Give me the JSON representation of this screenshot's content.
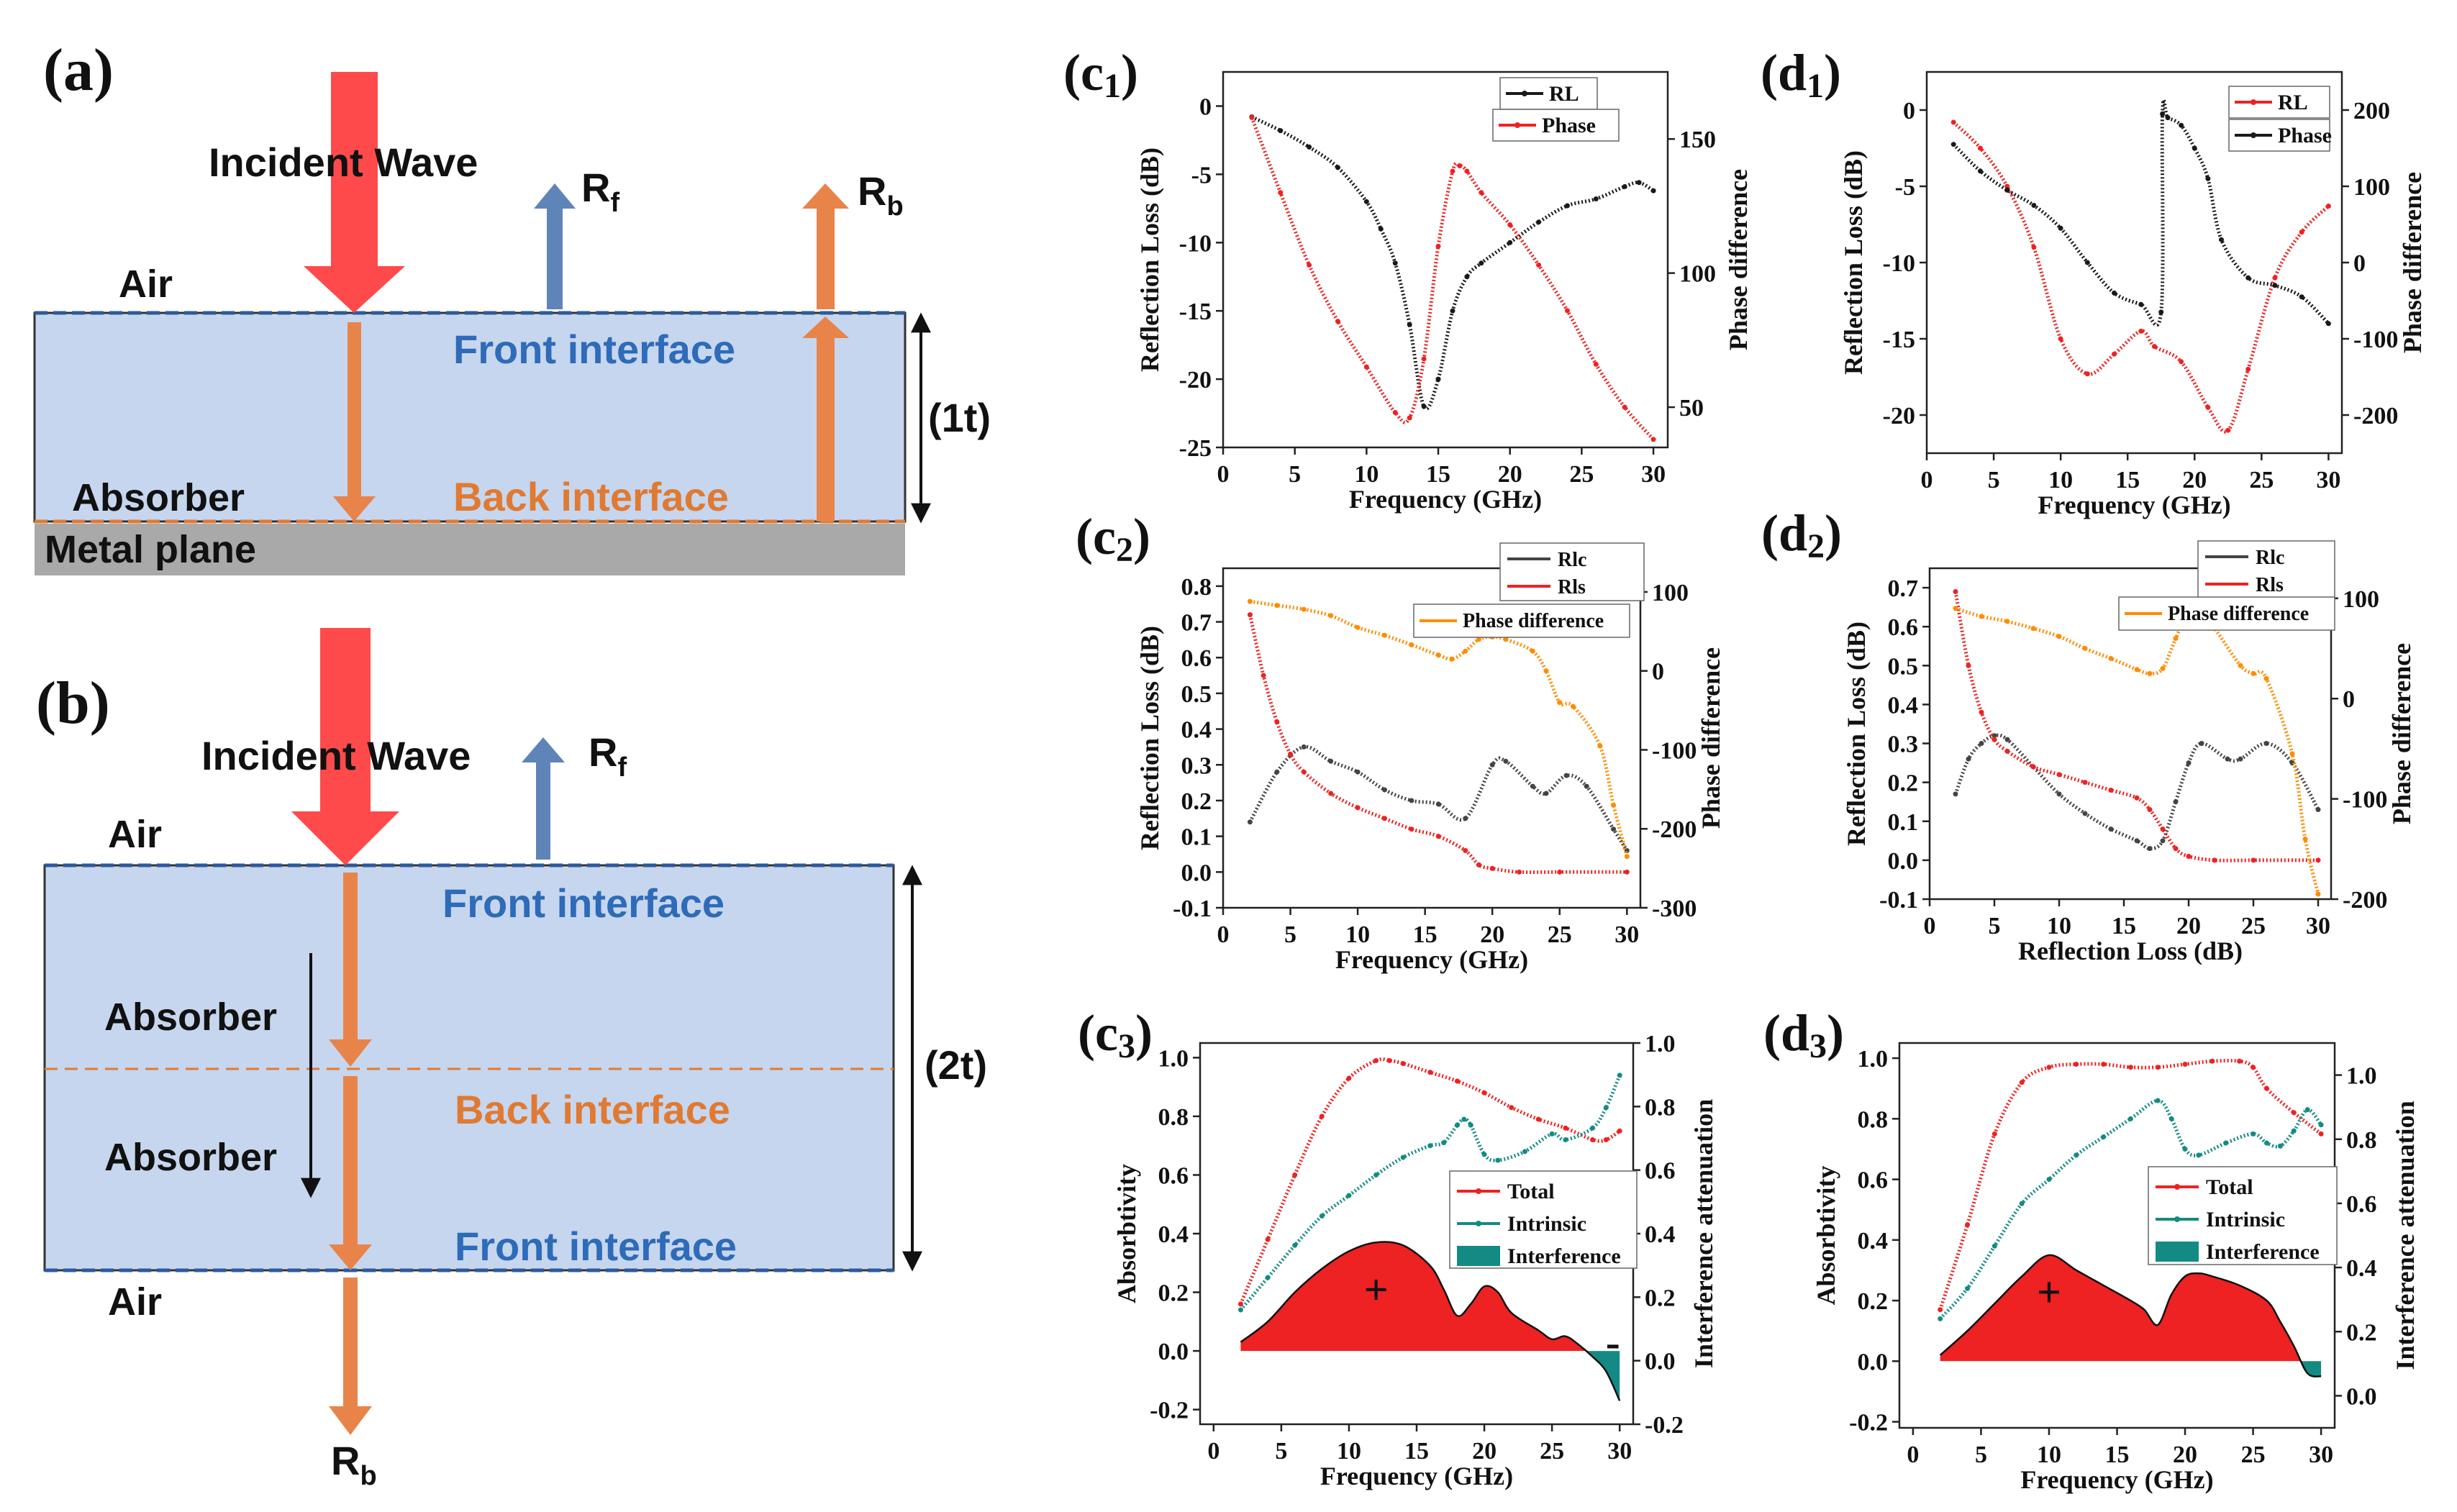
{
  "panel_a": {
    "label": "(a)",
    "incident": "Incident Wave",
    "rf": "R",
    "rf_sub": "f",
    "rb": "R",
    "rb_sub": "b",
    "air": "Air",
    "front": "Front interface",
    "absorber": "Absorber",
    "back": "Back interface",
    "metal": "Metal plane",
    "thick": "(1t)"
  },
  "panel_b": {
    "label": "(b)",
    "incident": "Incident Wave",
    "rf": "R",
    "rf_sub": "f",
    "air_top": "Air",
    "front1": "Front interface",
    "absorber1": "Absorber",
    "back": "Back interface",
    "absorber2": "Absorber",
    "front2": "Front interface",
    "air_bottom": "Air",
    "rb": "R",
    "rb_sub": "b",
    "thick": "(2t)"
  },
  "colors": {
    "red_arrow": "#fe4a4a",
    "orange_arrow": "#e8844a",
    "blue_arrow": "#5f84b8",
    "layer": "#c6d6ee",
    "metal": "#a9a9a9",
    "blue_text": "#2e6bb8",
    "orange_text": "#e07a32",
    "black": "#1a1a1a",
    "red": "#ee2222",
    "orange": "#ff8c00",
    "teal": "#138b84",
    "gray": "#444444"
  },
  "chart_data": [
    {
      "id": "c1",
      "label": "(c",
      "sub": "1",
      "type": "line",
      "xlabel": "Frequency (GHz)",
      "ylabel": "Reflection Loss (dB)",
      "y2label": "Phase difference",
      "xlim": [
        0,
        31
      ],
      "ylim": [
        -25,
        2.5
      ],
      "y2lim": [
        35,
        175
      ],
      "xticks": [
        0,
        5,
        10,
        15,
        20,
        25,
        30
      ],
      "yticks": [
        0,
        -5,
        -10,
        -15,
        -20,
        -25
      ],
      "y2ticks": [
        50,
        100,
        150
      ],
      "legend": [
        {
          "name": "RL",
          "color": "#1a1a1a"
        },
        {
          "name": "Phase",
          "color": "#ee2222"
        }
      ],
      "series": [
        {
          "name": "RL",
          "axis": "y",
          "color": "#1a1a1a",
          "x": [
            2,
            4,
            6,
            8,
            10,
            11,
            12,
            13,
            14,
            15,
            16,
            17,
            18,
            20,
            22,
            24,
            26,
            28,
            29,
            30
          ],
          "y": [
            -0.8,
            -1.8,
            -3,
            -4.5,
            -7,
            -9,
            -11.5,
            -16,
            -22,
            -20,
            -15,
            -12.5,
            -11.5,
            -10,
            -8.5,
            -7.3,
            -6.8,
            -5.9,
            -5.6,
            -6.2
          ]
        },
        {
          "name": "Phase",
          "axis": "y2",
          "color": "#ee2222",
          "x": [
            2,
            4,
            6,
            8,
            10,
            12,
            13,
            14,
            15,
            16,
            16.5,
            17,
            18,
            20,
            22,
            24,
            26,
            28,
            30
          ],
          "y": [
            158,
            130,
            103,
            82,
            65,
            48,
            46,
            68,
            110,
            138,
            140,
            138,
            130,
            118,
            103,
            86,
            66,
            50,
            38
          ]
        }
      ]
    },
    {
      "id": "d1",
      "label": "(d",
      "sub": "1",
      "type": "line",
      "xlabel": "Frequency (GHz)",
      "ylabel": "Reflection Loss (dB)",
      "y2label": "Phase difference",
      "xlim": [
        0,
        31
      ],
      "ylim": [
        -22.5,
        2.5
      ],
      "y2lim": [
        -250,
        250
      ],
      "xticks": [
        0,
        5,
        10,
        15,
        20,
        25,
        30
      ],
      "yticks": [
        0,
        -5,
        -10,
        -15,
        -20
      ],
      "y2ticks": [
        200,
        100,
        0,
        -100,
        -200
      ],
      "legend": [
        {
          "name": "RL",
          "color": "#ee2222"
        },
        {
          "name": "Phase",
          "color": "#1a1a1a"
        }
      ],
      "series": [
        {
          "name": "RL",
          "axis": "y",
          "color": "#ee2222",
          "x": [
            2,
            4,
            6,
            8,
            10,
            12,
            14,
            16,
            17,
            19,
            21,
            22.5,
            24,
            26,
            28,
            30
          ],
          "y": [
            -0.8,
            -2.5,
            -5,
            -9,
            -15,
            -17.3,
            -16,
            -14.5,
            -15.5,
            -16.5,
            -19.5,
            -21,
            -17,
            -11,
            -8,
            -6.3
          ]
        },
        {
          "name": "Phase",
          "axis": "y2",
          "color": "#1a1a1a",
          "x": [
            2,
            4,
            6,
            8,
            10,
            12,
            14,
            16,
            17.5,
            17.6,
            18,
            19,
            20,
            21,
            22,
            24,
            26,
            28,
            30
          ],
          "y": [
            155,
            120,
            95,
            75,
            45,
            0,
            -40,
            -55,
            -65,
            195,
            190,
            180,
            150,
            110,
            30,
            -20,
            -30,
            -45,
            -80
          ]
        }
      ]
    },
    {
      "id": "c2",
      "label": "(c",
      "sub": "2",
      "type": "line",
      "xlabel": "Frequency (GHz)",
      "ylabel": "Reflection Loss (dB)",
      "y2label": "Phase difference",
      "xlim": [
        0,
        31
      ],
      "ylim": [
        -0.1,
        0.85
      ],
      "y2lim": [
        -300,
        130
      ],
      "xticks": [
        0,
        5,
        10,
        15,
        20,
        25,
        30
      ],
      "yticks": [
        0.8,
        0.7,
        0.6,
        0.5,
        0.4,
        0.3,
        0.2,
        0.1,
        0.0,
        -0.1
      ],
      "y2ticks": [
        100,
        0,
        -100,
        -200,
        -300
      ],
      "legend": [
        {
          "name": "Rlc",
          "color": "#444444"
        },
        {
          "name": "Rls",
          "color": "#ee2222"
        },
        {
          "name": "Phase difference",
          "color": "#ff8c00"
        }
      ],
      "series": [
        {
          "name": "Rlc",
          "axis": "y",
          "color": "#444444",
          "x": [
            2,
            4,
            6,
            8,
            10,
            12,
            14,
            16,
            18,
            20,
            21,
            23,
            24,
            25.5,
            27,
            29,
            30
          ],
          "y": [
            0.14,
            0.28,
            0.35,
            0.31,
            0.28,
            0.23,
            0.2,
            0.19,
            0.15,
            0.3,
            0.31,
            0.24,
            0.22,
            0.27,
            0.24,
            0.12,
            0.06
          ]
        },
        {
          "name": "Rls",
          "axis": "y",
          "color": "#ee2222",
          "x": [
            2,
            3,
            4,
            5,
            6,
            8,
            10,
            12,
            14,
            16,
            18,
            19,
            20,
            22,
            25,
            30
          ],
          "y": [
            0.72,
            0.55,
            0.42,
            0.33,
            0.28,
            0.22,
            0.18,
            0.15,
            0.12,
            0.1,
            0.06,
            0.02,
            0.01,
            0.0,
            0.0,
            0.0
          ]
        },
        {
          "name": "Phase difference",
          "axis": "y2",
          "color": "#ff8c00",
          "x": [
            2,
            4,
            6,
            8,
            10,
            12,
            14,
            16,
            17,
            18,
            19,
            20,
            21,
            23,
            24,
            25,
            26,
            28,
            29,
            30
          ],
          "y": [
            88,
            83,
            78,
            70,
            55,
            45,
            33,
            20,
            15,
            25,
            40,
            43,
            40,
            25,
            0,
            -40,
            -45,
            -95,
            -170,
            -235
          ]
        }
      ]
    },
    {
      "id": "d2",
      "label": "(d",
      "sub": "2",
      "type": "line",
      "xlabel": "Reflection Loss (dB)",
      "ylabel": "Reflection Loss (dB)",
      "y2label": "Phase difference",
      "xlim": [
        0,
        31
      ],
      "ylim": [
        -0.1,
        0.75
      ],
      "y2lim": [
        -200,
        130
      ],
      "xticks": [
        0,
        5,
        10,
        15,
        20,
        25,
        30
      ],
      "yticks": [
        0.7,
        0.6,
        0.5,
        0.4,
        0.3,
        0.2,
        0.1,
        0.0,
        -0.1
      ],
      "y2ticks": [
        100,
        0,
        -100,
        -200
      ],
      "legend": [
        {
          "name": "Rlc",
          "color": "#444444"
        },
        {
          "name": "Rls",
          "color": "#ee2222"
        },
        {
          "name": "Phase difference",
          "color": "#ff8c00"
        }
      ],
      "series": [
        {
          "name": "Rlc",
          "axis": "y",
          "color": "#444444",
          "x": [
            2,
            3,
            4,
            5,
            6,
            8,
            10,
            12,
            14,
            16,
            17,
            18,
            19,
            20,
            21,
            23,
            24,
            26,
            28,
            30
          ],
          "y": [
            0.17,
            0.26,
            0.3,
            0.32,
            0.31,
            0.24,
            0.17,
            0.12,
            0.08,
            0.05,
            0.03,
            0.05,
            0.15,
            0.25,
            0.3,
            0.26,
            0.26,
            0.3,
            0.25,
            0.13
          ]
        },
        {
          "name": "Rls",
          "axis": "y",
          "color": "#ee2222",
          "x": [
            2,
            3,
            4,
            5,
            6,
            8,
            10,
            12,
            14,
            16,
            17,
            18,
            19,
            20,
            22,
            25,
            30
          ],
          "y": [
            0.69,
            0.5,
            0.38,
            0.31,
            0.28,
            0.24,
            0.22,
            0.2,
            0.18,
            0.16,
            0.13,
            0.08,
            0.03,
            0.01,
            0.0,
            0.0,
            0.0
          ]
        },
        {
          "name": "Phase difference",
          "axis": "y2",
          "color": "#ff8c00",
          "x": [
            2,
            4,
            6,
            8,
            10,
            12,
            14,
            16,
            17,
            18,
            19,
            20,
            21,
            22,
            24,
            25,
            26,
            28,
            29,
            30
          ],
          "y": [
            90,
            82,
            77,
            70,
            62,
            50,
            40,
            29,
            25,
            30,
            60,
            86,
            83,
            70,
            33,
            25,
            20,
            -55,
            -140,
            -195
          ]
        }
      ]
    },
    {
      "id": "c3",
      "label": "(c",
      "sub": "3",
      "type": "area",
      "xlabel": "Frequency (GHz)",
      "ylabel": "Absorbtivity",
      "y2label": "Interference attenuation",
      "xlim": [
        -1,
        31
      ],
      "ylim": [
        -0.25,
        1.05
      ],
      "y2lim": [
        -0.2,
        1.0
      ],
      "xticks": [
        0,
        5,
        10,
        15,
        20,
        25,
        30
      ],
      "yticks": [
        1.0,
        0.8,
        0.6,
        0.4,
        0.2,
        0.0,
        -0.2
      ],
      "y2ticks": [
        1.0,
        0.8,
        0.6,
        0.4,
        0.2,
        0.0,
        -0.2
      ],
      "legend": [
        {
          "name": "Total",
          "color": "#ee2222"
        },
        {
          "name": "Intrinsic",
          "color": "#138b84"
        },
        {
          "name": "Interference",
          "color": "#138b84"
        }
      ],
      "annotations": [
        "+",
        "-"
      ],
      "series": [
        {
          "name": "Total",
          "axis": "y",
          "color": "#ee2222",
          "x": [
            2,
            4,
            6,
            8,
            10,
            12,
            13,
            14,
            16,
            18,
            20,
            22,
            24,
            26,
            28,
            29,
            30
          ],
          "y": [
            0.16,
            0.38,
            0.6,
            0.8,
            0.93,
            0.99,
            0.99,
            0.98,
            0.95,
            0.92,
            0.88,
            0.83,
            0.79,
            0.76,
            0.72,
            0.72,
            0.75
          ]
        },
        {
          "name": "Intrinsic",
          "axis": "y",
          "color": "#138b84",
          "x": [
            2,
            4,
            6,
            8,
            10,
            12,
            14,
            16,
            17,
            18,
            18.5,
            19,
            20,
            21,
            23,
            25,
            26,
            28,
            29,
            30
          ],
          "y": [
            0.14,
            0.25,
            0.36,
            0.46,
            0.53,
            0.6,
            0.66,
            0.7,
            0.71,
            0.77,
            0.79,
            0.77,
            0.67,
            0.65,
            0.68,
            0.74,
            0.72,
            0.76,
            0.83,
            0.94
          ]
        },
        {
          "name": "Interference",
          "axis": "y",
          "fill": "#ee2222",
          "neg_fill": "#138b84",
          "x": [
            2,
            4,
            6,
            8,
            10,
            12,
            14,
            16,
            17,
            18,
            19,
            20,
            21,
            22,
            24,
            25,
            26,
            27,
            28,
            29,
            30
          ],
          "y": [
            0.03,
            0.1,
            0.2,
            0.28,
            0.34,
            0.37,
            0.36,
            0.29,
            0.21,
            0.12,
            0.16,
            0.22,
            0.2,
            0.13,
            0.07,
            0.04,
            0.05,
            0.02,
            -0.02,
            -0.07,
            -0.17
          ]
        }
      ]
    },
    {
      "id": "d3",
      "label": "(d",
      "sub": "3",
      "type": "area",
      "xlabel": "Frequency (GHz)",
      "ylabel": "Absorbtivity",
      "y2label": "Interference attenuation",
      "xlim": [
        -1,
        31
      ],
      "ylim": [
        -0.22,
        1.05
      ],
      "y2lim": [
        -0.1,
        1.1
      ],
      "xticks": [
        0,
        5,
        10,
        15,
        20,
        25,
        30
      ],
      "yticks": [
        1.0,
        0.8,
        0.6,
        0.4,
        0.2,
        0.0,
        -0.2
      ],
      "y2ticks": [
        1.0,
        0.8,
        0.6,
        0.4,
        0.2,
        0.0
      ],
      "legend": [
        {
          "name": "Total",
          "color": "#ee2222"
        },
        {
          "name": "Intrinsic",
          "color": "#138b84"
        },
        {
          "name": "Interference",
          "color": "#138b84"
        }
      ],
      "annotations": [
        "+"
      ],
      "series": [
        {
          "name": "Total",
          "axis": "y",
          "color": "#ee2222",
          "x": [
            2,
            4,
            6,
            8,
            10,
            12,
            14,
            16,
            18,
            20,
            22,
            24,
            25,
            26,
            28,
            30
          ],
          "y": [
            0.17,
            0.45,
            0.75,
            0.92,
            0.97,
            0.98,
            0.98,
            0.97,
            0.97,
            0.98,
            0.99,
            0.99,
            0.97,
            0.9,
            0.82,
            0.75
          ]
        },
        {
          "name": "Intrinsic",
          "axis": "y",
          "color": "#138b84",
          "x": [
            2,
            4,
            6,
            8,
            10,
            12,
            14,
            16,
            18,
            19,
            20,
            21,
            23,
            25,
            26,
            27,
            28,
            29,
            30
          ],
          "y": [
            0.14,
            0.24,
            0.38,
            0.52,
            0.6,
            0.68,
            0.74,
            0.8,
            0.86,
            0.8,
            0.7,
            0.68,
            0.72,
            0.75,
            0.72,
            0.71,
            0.76,
            0.83,
            0.78
          ]
        },
        {
          "name": "Interference",
          "axis": "y",
          "fill": "#ee2222",
          "neg_fill": "#138b84",
          "x": [
            2,
            4,
            6,
            8,
            10,
            12,
            14,
            16,
            17,
            18,
            19,
            20,
            21,
            22,
            24,
            26,
            27,
            28,
            29,
            30
          ],
          "y": [
            0.02,
            0.1,
            0.19,
            0.28,
            0.35,
            0.3,
            0.25,
            0.2,
            0.17,
            0.12,
            0.22,
            0.28,
            0.29,
            0.28,
            0.25,
            0.2,
            0.13,
            0.05,
            -0.04,
            -0.05
          ]
        }
      ]
    }
  ]
}
